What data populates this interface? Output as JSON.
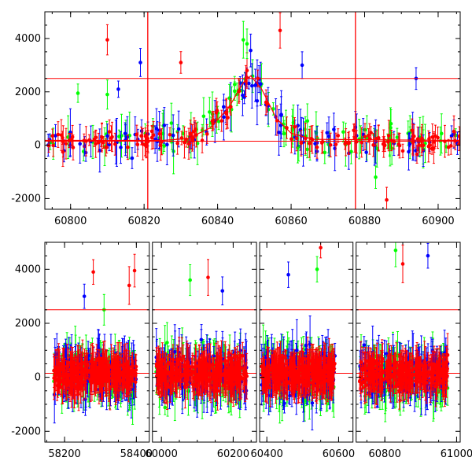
{
  "colors": {
    "green": "#00ff00",
    "blue": "#0000ff",
    "red": "#ff0000",
    "axis": "#000000"
  },
  "chart_data": [
    {
      "name": "top-panel",
      "type": "scatter",
      "error_bars": true,
      "title": "",
      "xlabel": "",
      "ylabel": "",
      "xlim": [
        60793,
        60906
      ],
      "ylim": [
        -2400,
        5000
      ],
      "xticks": [
        60800,
        60820,
        60840,
        60860,
        60880,
        60900
      ],
      "yticks": [
        -2000,
        0,
        2000,
        4000
      ],
      "hlines": [
        150,
        2500
      ],
      "vlines": [
        60821,
        60877.5
      ],
      "model_curve": [
        [
          60793,
          180
        ],
        [
          60825,
          180
        ],
        [
          60832,
          250
        ],
        [
          60838,
          650
        ],
        [
          60843,
          1400
        ],
        [
          60847,
          2350
        ],
        [
          60849,
          2600
        ],
        [
          60852,
          2100
        ],
        [
          60856,
          1000
        ],
        [
          60860,
          450
        ],
        [
          60866,
          220
        ],
        [
          60906,
          180
        ]
      ],
      "highlight_points": {
        "red": [
          [
            60810,
            3950
          ],
          [
            60830,
            3100
          ],
          [
            60848,
            2800
          ],
          [
            60857,
            4300
          ],
          [
            60886,
            -2050
          ]
        ],
        "blue": [
          [
            60813,
            2100
          ],
          [
            60819,
            3100
          ],
          [
            60849,
            3550
          ],
          [
            60863,
            3000
          ],
          [
            60894,
            2500
          ]
        ],
        "green": [
          [
            60810,
            1900
          ],
          [
            60802,
            1950
          ],
          [
            60847,
            3950
          ],
          [
            60848,
            3800
          ],
          [
            60883,
            -1200
          ]
        ]
      }
    },
    {
      "name": "bottom-panel",
      "type": "scatter",
      "error_bars": true,
      "title": "",
      "xlabel": "",
      "ylabel": "",
      "xlim": [
        58145,
        61010
      ],
      "ylim": [
        -2400,
        5000
      ],
      "xticks": [
        58200,
        58400,
        60000,
        60200,
        60400,
        60600,
        60800,
        61000
      ],
      "yticks": [
        -2000,
        0,
        2000,
        4000
      ],
      "hlines": [
        150,
        2500
      ],
      "segments": [
        {
          "from": 58145,
          "to": 58436
        },
        {
          "from": 59975,
          "to": 60265
        },
        {
          "from": 60380,
          "to": 60640
        },
        {
          "from": 60720,
          "to": 61010
        }
      ],
      "clusters": [
        {
          "x_from": 58170,
          "x_to": 58400
        },
        {
          "x_from": 59985,
          "x_to": 60240
        },
        {
          "x_from": 60385,
          "x_to": 60590
        },
        {
          "x_from": 60730,
          "x_to": 60975
        }
      ],
      "highlight_points": {
        "red": [
          [
            58280,
            3900
          ],
          [
            58395,
            3950
          ],
          [
            58380,
            3400
          ],
          [
            60130,
            3700
          ],
          [
            60550,
            4800
          ],
          [
            60850,
            4200
          ]
        ],
        "blue": [
          [
            58255,
            3000
          ],
          [
            60170,
            3200
          ],
          [
            60460,
            3800
          ],
          [
            60920,
            4500
          ]
        ],
        "green": [
          [
            60080,
            3600
          ],
          [
            58310,
            2500
          ],
          [
            60540,
            4000
          ],
          [
            60830,
            4700
          ]
        ]
      }
    }
  ]
}
